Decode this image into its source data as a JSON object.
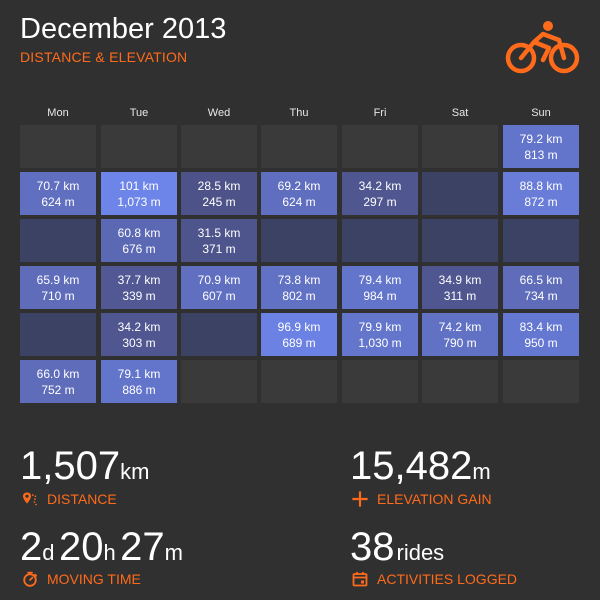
{
  "header": {
    "title": "December 2013",
    "subtitle": "DISTANCE & ELEVATION",
    "logo_icon": "cyclist-icon"
  },
  "colors": {
    "background": "#303030",
    "accent": "#ff6b1a",
    "empty_cell": "#3a3a3a",
    "rest_day_cell": "#3b4263",
    "scale_low": "#4d5288",
    "scale_high": "#6d84e8"
  },
  "calendar": {
    "weekdays": [
      "Mon",
      "Tue",
      "Wed",
      "Thu",
      "Fri",
      "Sat",
      "Sun"
    ],
    "weeks": [
      [
        {
          "state": "empty"
        },
        {
          "state": "empty"
        },
        {
          "state": "empty"
        },
        {
          "state": "empty"
        },
        {
          "state": "empty"
        },
        {
          "state": "empty"
        },
        {
          "state": "ride",
          "distance": "79.2 km",
          "elevation": "813 m",
          "km": 79.2
        }
      ],
      [
        {
          "state": "ride",
          "distance": "70.7 km",
          "elevation": "624 m",
          "km": 70.7
        },
        {
          "state": "ride",
          "distance": "101 km",
          "elevation": "1,073 m",
          "km": 101
        },
        {
          "state": "ride",
          "distance": "28.5 km",
          "elevation": "245 m",
          "km": 28.5
        },
        {
          "state": "ride",
          "distance": "69.2 km",
          "elevation": "624 m",
          "km": 69.2
        },
        {
          "state": "ride",
          "distance": "34.2 km",
          "elevation": "297 m",
          "km": 34.2
        },
        {
          "state": "rest"
        },
        {
          "state": "ride",
          "distance": "88.8 km",
          "elevation": "872 m",
          "km": 88.8
        }
      ],
      [
        {
          "state": "rest"
        },
        {
          "state": "ride",
          "distance": "60.8 km",
          "elevation": "676 m",
          "km": 60.8
        },
        {
          "state": "ride",
          "distance": "31.5 km",
          "elevation": "371 m",
          "km": 31.5
        },
        {
          "state": "rest"
        },
        {
          "state": "rest"
        },
        {
          "state": "rest"
        },
        {
          "state": "rest"
        }
      ],
      [
        {
          "state": "ride",
          "distance": "65.9 km",
          "elevation": "710 m",
          "km": 65.9
        },
        {
          "state": "ride",
          "distance": "37.7 km",
          "elevation": "339 m",
          "km": 37.7
        },
        {
          "state": "ride",
          "distance": "70.9 km",
          "elevation": "607 m",
          "km": 70.9
        },
        {
          "state": "ride",
          "distance": "73.8 km",
          "elevation": "802 m",
          "km": 73.8
        },
        {
          "state": "ride",
          "distance": "79.4 km",
          "elevation": "984 m",
          "km": 79.4
        },
        {
          "state": "ride",
          "distance": "34.9 km",
          "elevation": "311 m",
          "km": 34.9
        },
        {
          "state": "ride",
          "distance": "66.5 km",
          "elevation": "734 m",
          "km": 66.5
        }
      ],
      [
        {
          "state": "rest"
        },
        {
          "state": "ride",
          "distance": "34.2 km",
          "elevation": "303 m",
          "km": 34.2
        },
        {
          "state": "rest"
        },
        {
          "state": "ride",
          "distance": "96.9 km",
          "elevation": "689 m",
          "km": 96.9
        },
        {
          "state": "ride",
          "distance": "79.9 km",
          "elevation": "1,030 m",
          "km": 79.9
        },
        {
          "state": "ride",
          "distance": "74.2 km",
          "elevation": "790 m",
          "km": 74.2
        },
        {
          "state": "ride",
          "distance": "83.4 km",
          "elevation": "950 m",
          "km": 83.4
        }
      ],
      [
        {
          "state": "ride",
          "distance": "66.0 km",
          "elevation": "752 m",
          "km": 66.0
        },
        {
          "state": "ride",
          "distance": "79.1 km",
          "elevation": "886 m",
          "km": 79.1
        },
        {
          "state": "empty"
        },
        {
          "state": "empty"
        },
        {
          "state": "empty"
        },
        {
          "state": "empty"
        },
        {
          "state": "empty"
        }
      ]
    ]
  },
  "stats": {
    "distance": {
      "value": "1,507",
      "unit": "km",
      "label": "DISTANCE",
      "icon": "route-pin-icon"
    },
    "elevation": {
      "value": "15,482",
      "unit": "m",
      "label": "ELEVATION GAIN",
      "icon": "plus-icon"
    },
    "moving_time": {
      "days": "2",
      "days_unit": "d",
      "hours": "20",
      "hours_unit": "h",
      "minutes": "27",
      "minutes_unit": "m",
      "label": "MOVING TIME",
      "icon": "stopwatch-icon"
    },
    "activities": {
      "value": "38",
      "unit": "rides",
      "label": "ACTIVITIES LOGGED",
      "icon": "calendar-icon"
    }
  }
}
